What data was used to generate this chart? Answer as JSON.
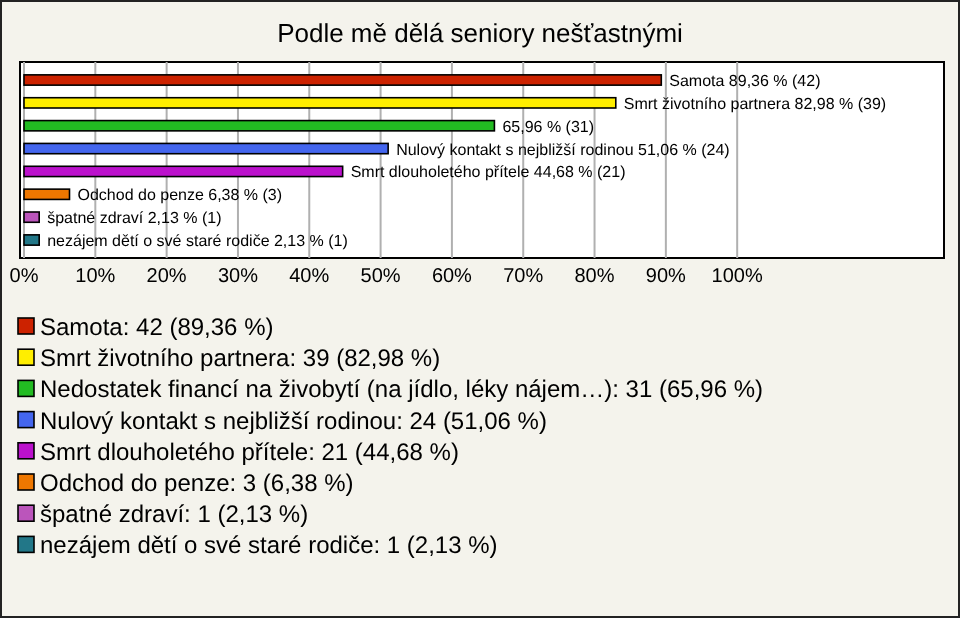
{
  "chart_data": {
    "type": "bar",
    "orientation": "horizontal",
    "stacked": true,
    "title": "Podle mě dělá seniory nešťastnými",
    "categories": [
      null,
      null,
      null,
      null,
      null,
      null,
      null,
      null
    ],
    "series": [
      {
        "name": "Samota: 42 (89,36 %)",
        "color": "#cc2200",
        "values": [
          89.36,
          null,
          null,
          null,
          null,
          null,
          null,
          null
        ],
        "value_labels": [
          "Samota 89,36 % (42)",
          null,
          null,
          null,
          null,
          null,
          null,
          null
        ]
      },
      {
        "name": "Smrt životního partnera: 39 (82,98 %)",
        "color": "#ffee00",
        "values": [
          null,
          82.98,
          null,
          null,
          null,
          null,
          null,
          null
        ],
        "value_labels": [
          null,
          "Smrt životního partnera 82,98 % (39)",
          null,
          null,
          null,
          null,
          null,
          null
        ]
      },
      {
        "name": "Nedostatek financí na živobytí (na jídlo, léky nájem…): 31 (65,96 %)",
        "color": "#22bb22",
        "values": [
          null,
          null,
          65.96,
          null,
          null,
          null,
          null,
          null
        ],
        "value_labels": [
          null,
          null,
          "65,96 % (31)",
          null,
          null,
          null,
          null,
          null
        ]
      },
      {
        "name": "Nulový kontakt s nejbližší rodinou: 24 (51,06 %)",
        "color": "#4466ee",
        "values": [
          null,
          null,
          null,
          51.06,
          null,
          null,
          null,
          null
        ],
        "value_labels": [
          null,
          null,
          null,
          "Nulový kontakt s nejbližší rodinou 51,06 % (24)",
          null,
          null,
          null,
          null
        ]
      },
      {
        "name": "Smrt dlouholetého přítele: 21 (44,68 %)",
        "color": "#bb11cc",
        "values": [
          null,
          null,
          null,
          null,
          44.68,
          null,
          null,
          null
        ],
        "value_labels": [
          null,
          null,
          null,
          null,
          "Smrt dlouholetého přítele 44,68 % (21)",
          null,
          null,
          null
        ]
      },
      {
        "name": "Odchod do penze: 3 (6,38 %)",
        "color": "#ee7700",
        "values": [
          null,
          null,
          null,
          null,
          null,
          6.38,
          null,
          null
        ],
        "value_labels": [
          null,
          null,
          null,
          null,
          null,
          "Odchod do penze 6,38 % (3)",
          null,
          null
        ]
      },
      {
        "name": "špatné zdraví: 1 (2,13 %)",
        "color": "#bb55bb",
        "values": [
          null,
          null,
          null,
          null,
          null,
          null,
          2.13,
          null
        ],
        "value_labels": [
          null,
          null,
          null,
          null,
          null,
          null,
          "špatné zdraví 2,13 % (1)",
          null
        ]
      },
      {
        "name": "nezájem dětí o své staré rodiče: 1 (2,13 %)",
        "color": "#227788",
        "values": [
          null,
          null,
          null,
          null,
          null,
          null,
          null,
          2.13
        ],
        "value_labels": [
          null,
          null,
          null,
          null,
          null,
          null,
          null,
          "nezájem dětí o své staré rodiče 2,13 % (1)"
        ]
      }
    ],
    "xlim": [
      0,
      129
    ],
    "xticks": [
      {
        "value": 0,
        "label": "0%"
      },
      {
        "value": 10,
        "label": "10%"
      },
      {
        "value": 20,
        "label": "20%"
      },
      {
        "value": 30,
        "label": "30%"
      },
      {
        "value": 40,
        "label": "40%"
      },
      {
        "value": 50,
        "label": "50%"
      },
      {
        "value": 60,
        "label": "60%"
      },
      {
        "value": 70,
        "label": "70%"
      },
      {
        "value": 80,
        "label": "80%"
      },
      {
        "value": 90,
        "label": "90%"
      },
      {
        "value": 100,
        "label": "100%"
      }
    ],
    "grid": "x",
    "legend": "bottom"
  }
}
